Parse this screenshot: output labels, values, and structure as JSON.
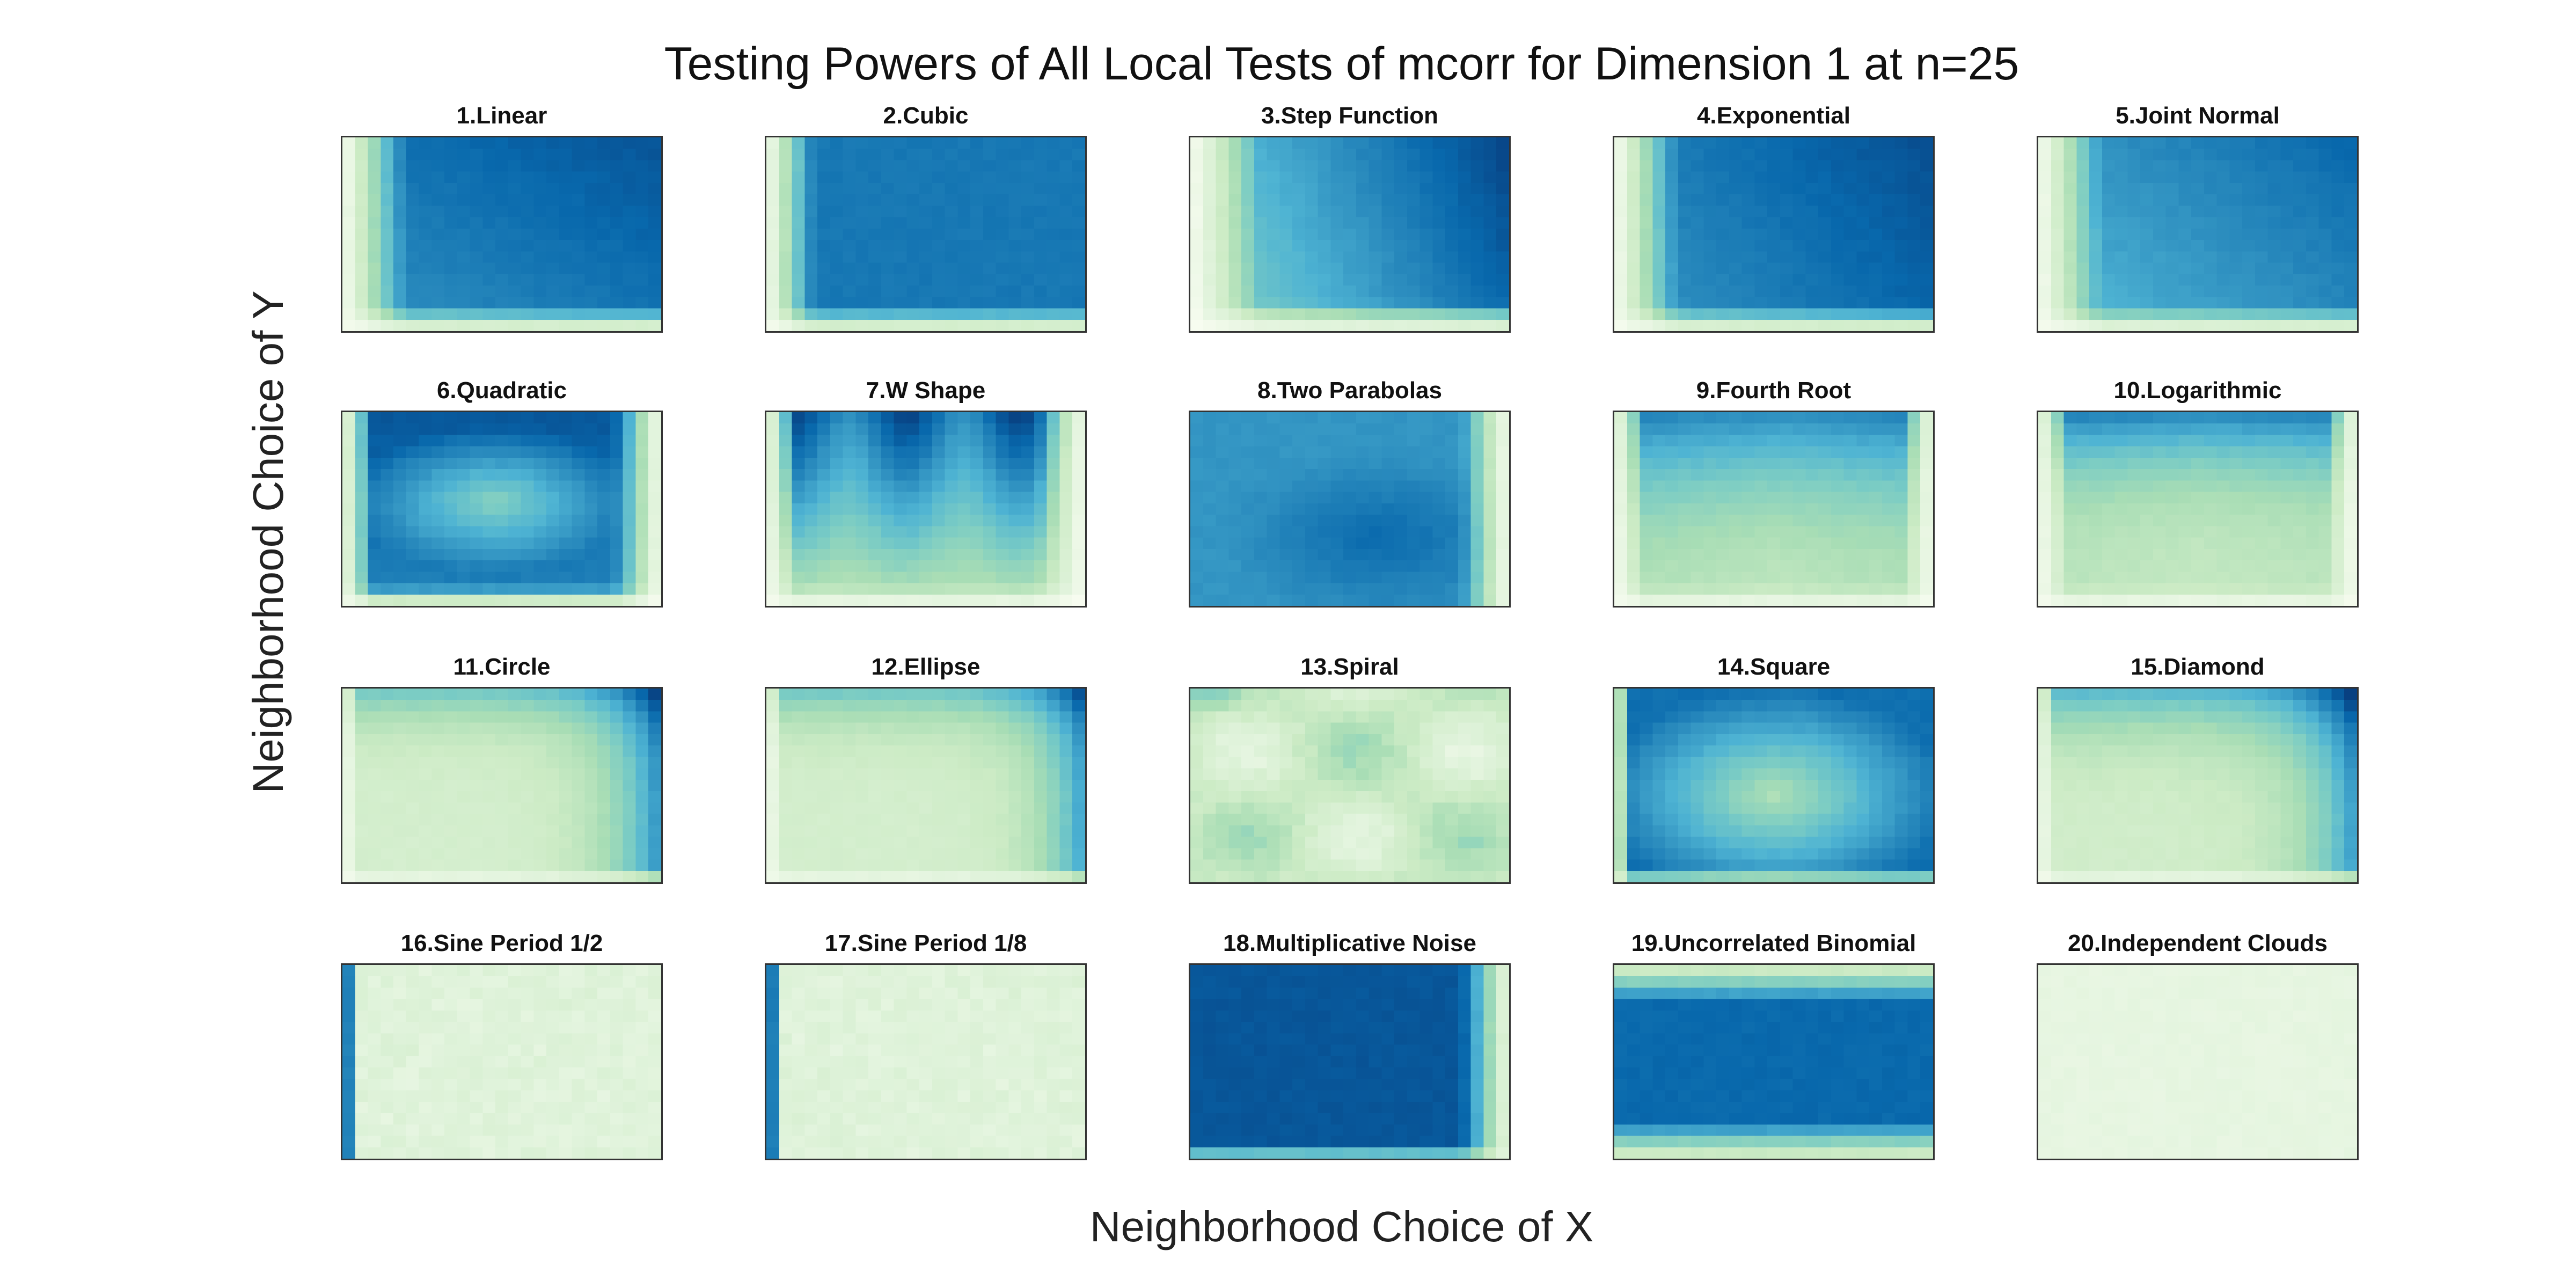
{
  "chart_data": {
    "type": "heatmap",
    "title": "Testing Powers of All Local Tests of mcorr for Dimension 1 at n=25",
    "xlabel": "Neighborhood Choice of X",
    "ylabel": "Neighborhood Choice of Y",
    "colormap": [
      "#f7fcf0",
      "#e0f3db",
      "#ccebc5",
      "#a8ddb5",
      "#7bccc4",
      "#4eb3d3",
      "#2b8cbe",
      "#0868ac",
      "#084081"
    ],
    "grid": "off",
    "panels": [
      {
        "title": "1.Linear",
        "pattern": "linear"
      },
      {
        "title": "2.Cubic",
        "pattern": "cubic"
      },
      {
        "title": "3.Step Function",
        "pattern": "step"
      },
      {
        "title": "4.Exponential",
        "pattern": "exponential"
      },
      {
        "title": "5.Joint Normal",
        "pattern": "jointnormal"
      },
      {
        "title": "6.Quadratic",
        "pattern": "quadratic"
      },
      {
        "title": "7.W Shape",
        "pattern": "wshape"
      },
      {
        "title": "8.Two Parabolas",
        "pattern": "twoparabolas"
      },
      {
        "title": "9.Fourth Root",
        "pattern": "fourthroot"
      },
      {
        "title": "10.Logarithmic",
        "pattern": "logarithmic"
      },
      {
        "title": "11.Circle",
        "pattern": "circle"
      },
      {
        "title": "12.Ellipse",
        "pattern": "ellipse"
      },
      {
        "title": "13.Spiral",
        "pattern": "spiral"
      },
      {
        "title": "14.Square",
        "pattern": "square"
      },
      {
        "title": "15.Diamond",
        "pattern": "diamond"
      },
      {
        "title": "16.Sine Period 1/2",
        "pattern": "sinehalf"
      },
      {
        "title": "17.Sine Period 1/8",
        "pattern": "sineeighth"
      },
      {
        "title": "18.Multiplicative Noise",
        "pattern": "multnoise"
      },
      {
        "title": "19.Uncorrelated Binomial",
        "pattern": "binomial"
      },
      {
        "title": "20.Independent Clouds",
        "pattern": "clouds"
      }
    ]
  }
}
